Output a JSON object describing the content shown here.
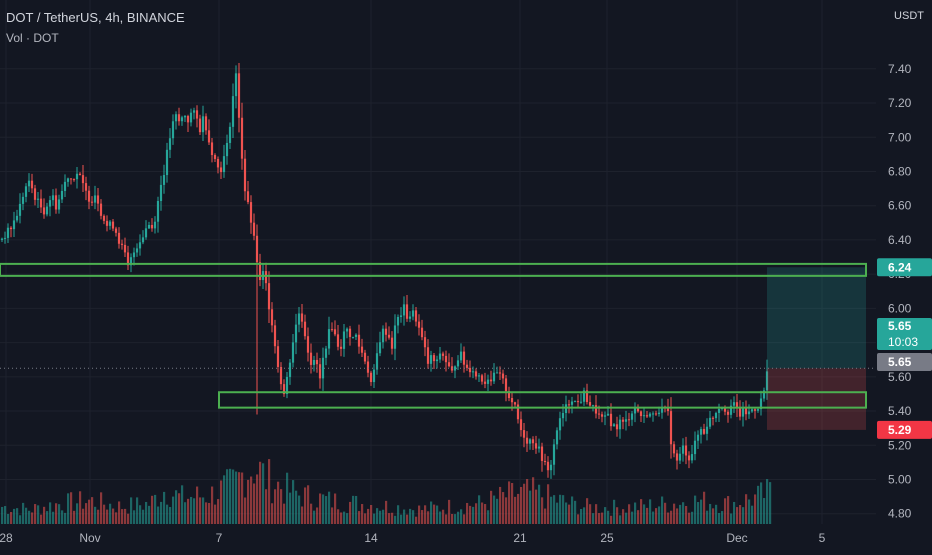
{
  "header": {
    "symbol": "DOT / TetherUS, 4h, BINANCE",
    "indicator": "Vol · DOT",
    "unit": "USDT"
  },
  "chart_data": {
    "type": "candlestick",
    "symbol": "DOT / TetherUS",
    "timeframe": "4h",
    "exchange": "BINANCE",
    "ylim": [
      4.74,
      7.58
    ],
    "y_ticks": [
      "7.40",
      "7.20",
      "7.00",
      "6.80",
      "6.60",
      "6.40",
      "6.20",
      "6.00",
      "5.80",
      "5.60",
      "5.40",
      "5.20",
      "5.00",
      "4.80"
    ],
    "x_ticks": [
      "28",
      "Nov",
      "7",
      "14",
      "21",
      "25",
      "Dec",
      "5"
    ],
    "close_path": [
      [
        0,
        6.4
      ],
      [
        5,
        6.43
      ],
      [
        10,
        6.46
      ],
      [
        15,
        6.52
      ],
      [
        20,
        6.6
      ],
      [
        24,
        6.68
      ],
      [
        28,
        6.74
      ],
      [
        32,
        6.7
      ],
      [
        36,
        6.64
      ],
      [
        40,
        6.6
      ],
      [
        44,
        6.57
      ],
      [
        48,
        6.62
      ],
      [
        52,
        6.66
      ],
      [
        56,
        6.6
      ],
      [
        60,
        6.65
      ],
      [
        64,
        6.72
      ],
      [
        68,
        6.78
      ],
      [
        72,
        6.75
      ],
      [
        76,
        6.8
      ],
      [
        80,
        6.76
      ],
      [
        84,
        6.7
      ],
      [
        88,
        6.65
      ],
      [
        92,
        6.64
      ],
      [
        96,
        6.68
      ],
      [
        100,
        6.58
      ],
      [
        104,
        6.52
      ],
      [
        108,
        6.47
      ],
      [
        112,
        6.5
      ],
      [
        116,
        6.45
      ],
      [
        120,
        6.38
      ],
      [
        124,
        6.33
      ],
      [
        128,
        6.24
      ],
      [
        132,
        6.3
      ],
      [
        136,
        6.36
      ],
      [
        140,
        6.4
      ],
      [
        144,
        6.44
      ],
      [
        148,
        6.5
      ],
      [
        152,
        6.47
      ],
      [
        156,
        6.55
      ],
      [
        160,
        6.7
      ],
      [
        164,
        6.8
      ],
      [
        168,
        6.94
      ],
      [
        172,
        7.06
      ],
      [
        176,
        7.12
      ],
      [
        180,
        7.08
      ],
      [
        184,
        7.14
      ],
      [
        188,
        7.1
      ],
      [
        192,
        7.15
      ],
      [
        196,
        7.12
      ],
      [
        200,
        7.05
      ],
      [
        204,
        7.13
      ],
      [
        208,
        7.0
      ],
      [
        212,
        6.92
      ],
      [
        216,
        6.85
      ],
      [
        220,
        6.8
      ],
      [
        224,
        6.88
      ],
      [
        228,
        6.97
      ],
      [
        232,
        7.2
      ],
      [
        236,
        7.36
      ],
      [
        240,
        7.05
      ],
      [
        244,
        6.72
      ],
      [
        248,
        6.6
      ],
      [
        252,
        6.48
      ],
      [
        256,
        6.32
      ],
      [
        260,
        6.15
      ],
      [
        264,
        6.22
      ],
      [
        268,
        6.05
      ],
      [
        272,
        5.92
      ],
      [
        276,
        5.74
      ],
      [
        280,
        5.6
      ],
      [
        284,
        5.5
      ],
      [
        288,
        5.62
      ],
      [
        292,
        5.78
      ],
      [
        296,
        5.9
      ],
      [
        300,
        6.0
      ],
      [
        304,
        5.88
      ],
      [
        308,
        5.76
      ],
      [
        312,
        5.66
      ],
      [
        316,
        5.7
      ],
      [
        320,
        5.58
      ],
      [
        324,
        5.74
      ],
      [
        328,
        5.84
      ],
      [
        332,
        5.9
      ],
      [
        336,
        5.82
      ],
      [
        340,
        5.76
      ],
      [
        344,
        5.85
      ],
      [
        348,
        5.88
      ],
      [
        352,
        5.82
      ],
      [
        356,
        5.84
      ],
      [
        360,
        5.76
      ],
      [
        364,
        5.72
      ],
      [
        368,
        5.64
      ],
      [
        372,
        5.54
      ],
      [
        376,
        5.7
      ],
      [
        380,
        5.82
      ],
      [
        384,
        5.88
      ],
      [
        388,
        5.85
      ],
      [
        392,
        5.78
      ],
      [
        396,
        5.92
      ],
      [
        400,
        5.96
      ],
      [
        404,
        6.0
      ],
      [
        408,
        5.94
      ],
      [
        412,
        5.98
      ],
      [
        416,
        5.94
      ],
      [
        420,
        5.86
      ],
      [
        424,
        5.78
      ],
      [
        428,
        5.68
      ],
      [
        432,
        5.72
      ],
      [
        436,
        5.66
      ],
      [
        440,
        5.74
      ],
      [
        444,
        5.72
      ],
      [
        448,
        5.66
      ],
      [
        452,
        5.62
      ],
      [
        456,
        5.7
      ],
      [
        460,
        5.74
      ],
      [
        464,
        5.68
      ],
      [
        468,
        5.64
      ],
      [
        472,
        5.66
      ],
      [
        476,
        5.6
      ],
      [
        480,
        5.62
      ],
      [
        484,
        5.56
      ],
      [
        488,
        5.6
      ],
      [
        492,
        5.58
      ],
      [
        496,
        5.62
      ],
      [
        500,
        5.6
      ],
      [
        504,
        5.56
      ],
      [
        508,
        5.5
      ],
      [
        512,
        5.46
      ],
      [
        516,
        5.4
      ],
      [
        520,
        5.3
      ],
      [
        524,
        5.26
      ],
      [
        528,
        5.22
      ],
      [
        532,
        5.24
      ],
      [
        536,
        5.2
      ],
      [
        540,
        5.16
      ],
      [
        544,
        5.1
      ],
      [
        548,
        5.04
      ],
      [
        552,
        5.12
      ],
      [
        556,
        5.28
      ],
      [
        560,
        5.34
      ],
      [
        564,
        5.4
      ],
      [
        568,
        5.44
      ],
      [
        572,
        5.48
      ],
      [
        576,
        5.44
      ],
      [
        580,
        5.46
      ],
      [
        584,
        5.5
      ],
      [
        588,
        5.46
      ],
      [
        592,
        5.42
      ],
      [
        596,
        5.4
      ],
      [
        600,
        5.36
      ],
      [
        604,
        5.34
      ],
      [
        608,
        5.38
      ],
      [
        612,
        5.32
      ],
      [
        616,
        5.3
      ],
      [
        620,
        5.34
      ],
      [
        624,
        5.32
      ],
      [
        628,
        5.36
      ],
      [
        632,
        5.4
      ],
      [
        636,
        5.42
      ],
      [
        640,
        5.38
      ],
      [
        644,
        5.36
      ],
      [
        648,
        5.4
      ],
      [
        652,
        5.36
      ],
      [
        656,
        5.4
      ],
      [
        660,
        5.42
      ],
      [
        664,
        5.4
      ],
      [
        668,
        5.38
      ],
      [
        672,
        5.18
      ],
      [
        676,
        5.1
      ],
      [
        680,
        5.14
      ],
      [
        684,
        5.2
      ],
      [
        688,
        5.12
      ],
      [
        692,
        5.16
      ],
      [
        696,
        5.22
      ],
      [
        700,
        5.3
      ],
      [
        704,
        5.28
      ],
      [
        708,
        5.34
      ],
      [
        712,
        5.36
      ],
      [
        716,
        5.4
      ],
      [
        720,
        5.44
      ],
      [
        724,
        5.42
      ],
      [
        728,
        5.4
      ],
      [
        732,
        5.44
      ],
      [
        736,
        5.42
      ],
      [
        740,
        5.38
      ],
      [
        744,
        5.4
      ],
      [
        748,
        5.38
      ],
      [
        752,
        5.41
      ],
      [
        756,
        5.42
      ],
      [
        760,
        5.44
      ],
      [
        764,
        5.52
      ],
      [
        768,
        5.65
      ]
    ],
    "volume_profile": [
      [
        0,
        0.3
      ],
      [
        30,
        0.25
      ],
      [
        60,
        0.35
      ],
      [
        90,
        0.4
      ],
      [
        120,
        0.3
      ],
      [
        150,
        0.35
      ],
      [
        165,
        0.6
      ],
      [
        180,
        0.45
      ],
      [
        210,
        0.5
      ],
      [
        235,
        0.7
      ],
      [
        245,
        0.9
      ],
      [
        255,
        1.0
      ],
      [
        265,
        0.8
      ],
      [
        285,
        0.6
      ],
      [
        300,
        0.5
      ],
      [
        330,
        0.4
      ],
      [
        360,
        0.35
      ],
      [
        390,
        0.3
      ],
      [
        420,
        0.25
      ],
      [
        450,
        0.3
      ],
      [
        480,
        0.35
      ],
      [
        510,
        0.5
      ],
      [
        530,
        0.55
      ],
      [
        550,
        0.45
      ],
      [
        580,
        0.3
      ],
      [
        610,
        0.28
      ],
      [
        640,
        0.3
      ],
      [
        670,
        0.35
      ],
      [
        700,
        0.4
      ],
      [
        730,
        0.35
      ],
      [
        755,
        0.45
      ],
      [
        770,
        0.55
      ]
    ],
    "zones": [
      {
        "name": "resistance",
        "low": 6.19,
        "high": 6.26,
        "x_from": 0,
        "x_to": 866,
        "color": "#4caf50"
      },
      {
        "name": "support",
        "low": 5.42,
        "high": 5.51,
        "x_from": 219,
        "x_to": 866,
        "color": "#4caf50"
      }
    ],
    "position": {
      "entry": 5.65,
      "target": 6.24,
      "stop": 5.29,
      "profit_color": "#26a69a",
      "loss_color": "#ef5350"
    },
    "price_labels": [
      {
        "text": "6.24",
        "price": 6.24,
        "bg": "#26a69a",
        "color": "#ffffff"
      },
      {
        "text": "5.65",
        "sub": "10:03",
        "price": 5.65,
        "bg": "#26a69a",
        "color": "#ffffff"
      },
      {
        "text": "5.65",
        "price": 5.65,
        "bg": "#787b86",
        "color": "#ffffff"
      },
      {
        "text": "5.29",
        "price": 5.29,
        "bg": "#f23645",
        "color": "#ffffff"
      }
    ],
    "colors": {
      "bg": "#131722",
      "up": "#26a69a",
      "down": "#ef5350",
      "grid": "#1e222d",
      "text": "#b2b5be"
    }
  }
}
